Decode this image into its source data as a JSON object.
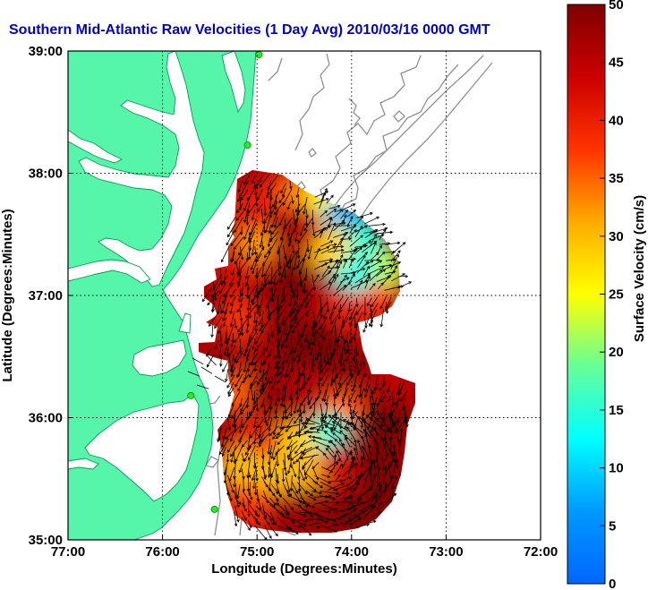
{
  "chart_data": {
    "type": "heatmap",
    "title": "Southern Mid-Atlantic Raw Velocities (1 Day Avg) 2010/03/16 0000 GMT",
    "xlabel": "Longitude (Degrees:Minutes)",
    "ylabel": "Latitude (Degrees:Minutes)",
    "colorbar_label": "Surface Velocity (cm/s)",
    "xlim": [
      -77,
      -72
    ],
    "ylim": [
      35,
      39
    ],
    "x_ticks": [
      {
        "v": -77,
        "label": "77:00"
      },
      {
        "v": -76,
        "label": "76:00"
      },
      {
        "v": -75,
        "label": "75:00"
      },
      {
        "v": -74,
        "label": "74:00"
      },
      {
        "v": -73,
        "label": "73:00"
      },
      {
        "v": -72,
        "label": "72:00"
      }
    ],
    "y_ticks": [
      {
        "v": 35,
        "label": "35:00"
      },
      {
        "v": 36,
        "label": "36:00"
      },
      {
        "v": 37,
        "label": "37:00"
      },
      {
        "v": 38,
        "label": "38:00"
      },
      {
        "v": 39,
        "label": "39:00"
      }
    ],
    "colorbar": {
      "min": 0,
      "max": 50,
      "ticks": [
        {
          "v": 0,
          "label": "0"
        },
        {
          "v": 5,
          "label": "5"
        },
        {
          "v": 10,
          "label": "10"
        },
        {
          "v": 15,
          "label": "15"
        },
        {
          "v": 20,
          "label": "20"
        },
        {
          "v": 25,
          "label": "25"
        },
        {
          "v": 30,
          "label": "30"
        },
        {
          "v": 35,
          "label": "35"
        },
        {
          "v": 40,
          "label": "40"
        },
        {
          "v": 45,
          "label": "45"
        },
        {
          "v": 50,
          "label": "50"
        }
      ],
      "colormap": "jet"
    },
    "grid": true,
    "colors": {
      "land": "#55f5aa",
      "land_outline": "#00a050",
      "isobath": "#909090",
      "title": "#0000cc",
      "stations": "#22ee22",
      "vectors": "#000000"
    },
    "stations": [
      {
        "lon": -74.98,
        "lat": 38.97
      },
      {
        "lon": -75.1,
        "lat": 38.23
      },
      {
        "lon": -75.7,
        "lat": 36.18
      },
      {
        "lon": -75.45,
        "lat": 35.25
      }
    ],
    "speed_field": [
      {
        "lon": -74.8,
        "lat": 37.82,
        "v": 40
      },
      {
        "lon": -74.5,
        "lat": 37.82,
        "v": 33
      },
      {
        "lon": -74.25,
        "lat": 37.75,
        "v": 25
      },
      {
        "lon": -74.05,
        "lat": 37.62,
        "v": 8
      },
      {
        "lon": -73.85,
        "lat": 37.42,
        "v": 15
      },
      {
        "lon": -73.65,
        "lat": 37.2,
        "v": 22
      },
      {
        "lon": -73.75,
        "lat": 36.92,
        "v": 38
      },
      {
        "lon": -74.0,
        "lat": 37.2,
        "v": 14
      },
      {
        "lon": -74.25,
        "lat": 37.4,
        "v": 28
      },
      {
        "lon": -74.55,
        "lat": 37.55,
        "v": 45
      },
      {
        "lon": -74.85,
        "lat": 37.45,
        "v": 48
      },
      {
        "lon": -75.05,
        "lat": 37.4,
        "v": 32
      },
      {
        "lon": -75.05,
        "lat": 37.0,
        "v": 45
      },
      {
        "lon": -74.8,
        "lat": 37.0,
        "v": 48
      },
      {
        "lon": -74.55,
        "lat": 37.1,
        "v": 50
      },
      {
        "lon": -74.3,
        "lat": 36.95,
        "v": 46
      },
      {
        "lon": -74.05,
        "lat": 36.85,
        "v": 40
      },
      {
        "lon": -73.75,
        "lat": 36.6,
        "v": 44
      },
      {
        "lon": -73.55,
        "lat": 36.3,
        "v": 45
      },
      {
        "lon": -74.0,
        "lat": 36.45,
        "v": 48
      },
      {
        "lon": -74.3,
        "lat": 36.6,
        "v": 50
      },
      {
        "lon": -74.7,
        "lat": 36.6,
        "v": 50
      },
      {
        "lon": -75.0,
        "lat": 36.5,
        "v": 46
      },
      {
        "lon": -75.2,
        "lat": 36.2,
        "v": 35
      },
      {
        "lon": -74.85,
        "lat": 36.2,
        "v": 48
      },
      {
        "lon": -74.45,
        "lat": 36.2,
        "v": 45
      },
      {
        "lon": -74.1,
        "lat": 36.05,
        "v": 35
      },
      {
        "lon": -74.25,
        "lat": 35.85,
        "v": 15
      },
      {
        "lon": -74.6,
        "lat": 35.8,
        "v": 28
      },
      {
        "lon": -75.0,
        "lat": 35.8,
        "v": 40
      },
      {
        "lon": -75.2,
        "lat": 35.6,
        "v": 30
      },
      {
        "lon": -74.85,
        "lat": 35.5,
        "v": 30
      },
      {
        "lon": -74.5,
        "lat": 35.55,
        "v": 30
      },
      {
        "lon": -74.1,
        "lat": 35.6,
        "v": 42
      },
      {
        "lon": -73.75,
        "lat": 35.65,
        "v": 50
      },
      {
        "lon": -73.65,
        "lat": 35.95,
        "v": 50
      },
      {
        "lon": -73.7,
        "lat": 35.35,
        "v": 50
      },
      {
        "lon": -74.0,
        "lat": 35.2,
        "v": 50
      },
      {
        "lon": -74.4,
        "lat": 35.25,
        "v": 48
      },
      {
        "lon": -74.8,
        "lat": 35.2,
        "v": 47
      },
      {
        "lon": -75.1,
        "lat": 35.25,
        "v": 38
      },
      {
        "lon": -75.15,
        "lat": 37.7,
        "v": 40
      },
      {
        "lon": -75.2,
        "lat": 36.8,
        "v": 38
      },
      {
        "lon": -75.25,
        "lat": 37.2,
        "v": 42
      }
    ]
  }
}
